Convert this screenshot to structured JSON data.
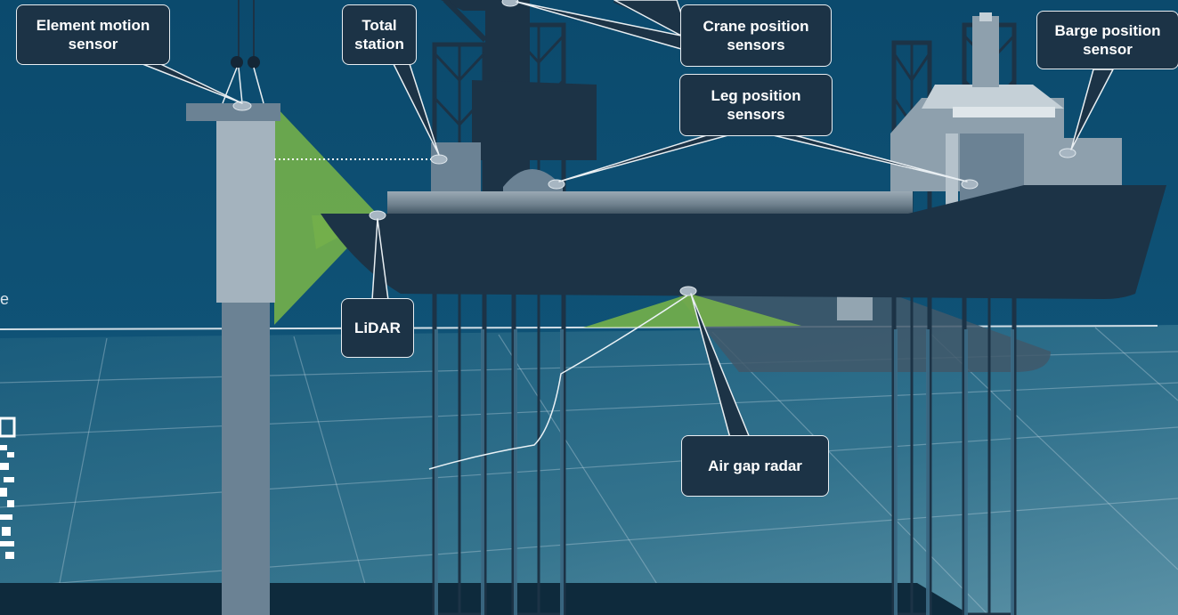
{
  "labels": {
    "element_motion_sensor": {
      "line1": "Element motion",
      "line2": "sensor"
    },
    "total_station": {
      "line1": "Total",
      "line2": "station"
    },
    "crane_position_sensors": {
      "line1": "Crane position",
      "line2": "sensors"
    },
    "barge_position_sensor": {
      "line1": "Barge position",
      "line2": "sensor"
    },
    "leg_position_sensors": {
      "line1": "Leg position",
      "line2": "sensors"
    },
    "lidar": {
      "line1": "LiDAR"
    },
    "air_gap_radar": {
      "line1": "Air gap radar"
    }
  },
  "left_edge_text": "e",
  "colors": {
    "sea_top": "#0e4c6e",
    "sea_bottom": "#2d6580",
    "vessel_dark": "#1c3346",
    "structure_grey": "#6b8294",
    "sensor_beam": "#7ab648",
    "callout_bg": "#1c3346",
    "callout_border": "#e9eef2",
    "sensor_dot": "#a7b6c2"
  }
}
